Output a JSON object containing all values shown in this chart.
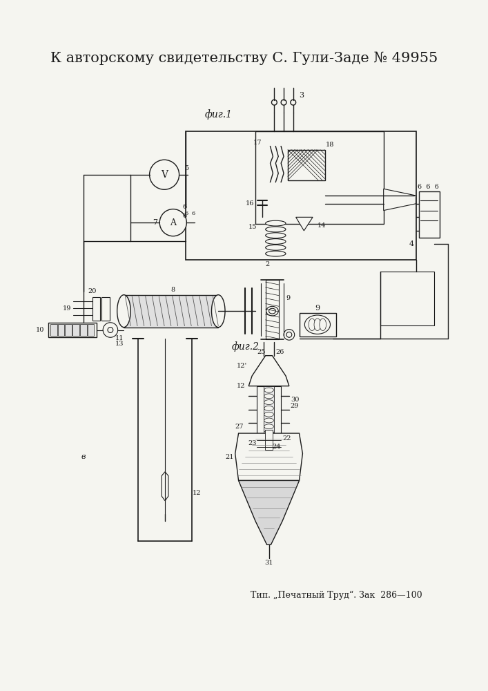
{
  "title": "К авторскому свидетельству С. Гули-Заде № 49955",
  "footer": "Тип. „Печатный Труд“. Зак  286—100",
  "fig1_label": "фиг.1",
  "fig2_label": "фиг.2",
  "bg_color": "#f5f5f0",
  "line_color": "#1a1a1a",
  "title_fontsize": 14,
  "footer_fontsize": 9,
  "label_fontsize": 10
}
